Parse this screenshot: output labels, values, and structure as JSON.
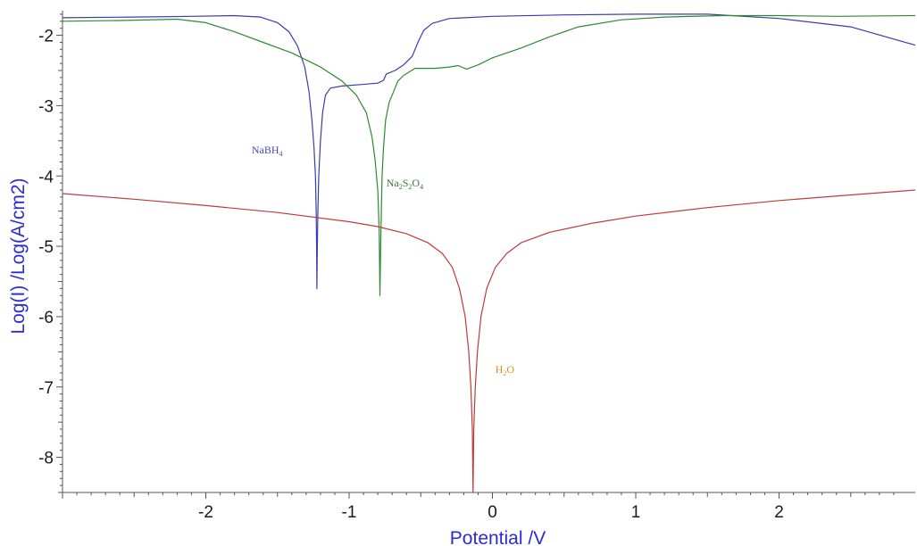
{
  "chart_data": {
    "type": "line",
    "title": "",
    "xlabel": "Potential /V",
    "ylabel": "Log(I) /Log(A/cm2)",
    "xlim": [
      -3.0,
      2.95
    ],
    "ylim": [
      -8.5,
      -1.65
    ],
    "x_ticks": [
      -2,
      -1,
      0,
      1,
      2
    ],
    "x_tick_labels": [
      "-2",
      "-1",
      "0",
      "1",
      "2"
    ],
    "y_ticks": [
      -2,
      -3,
      -4,
      -5,
      -6,
      -7,
      -8
    ],
    "y_tick_labels": [
      "-2",
      "-3",
      "-4",
      "-5",
      "-6",
      "-7",
      "-8"
    ],
    "grid": false,
    "legend": "none",
    "series": [
      {
        "name": "NaBH4",
        "label_parts": [
          [
            "NaBH",
            "main"
          ],
          [
            "4",
            "sub"
          ]
        ],
        "color": "#3b3bb0",
        "label_color": "#4a4aa8",
        "label_at": [
          -1.68,
          -3.68
        ],
        "points": [
          [
            -3.0,
            -1.75
          ],
          [
            -2.5,
            -1.74
          ],
          [
            -2.1,
            -1.73
          ],
          [
            -1.8,
            -1.72
          ],
          [
            -1.62,
            -1.74
          ],
          [
            -1.5,
            -1.82
          ],
          [
            -1.42,
            -1.95
          ],
          [
            -1.36,
            -2.15
          ],
          [
            -1.31,
            -2.45
          ],
          [
            -1.28,
            -2.8
          ],
          [
            -1.26,
            -3.2
          ],
          [
            -1.245,
            -3.6
          ],
          [
            -1.235,
            -4.0
          ],
          [
            -1.23,
            -4.5
          ],
          [
            -1.227,
            -5.0
          ],
          [
            -1.225,
            -5.6
          ],
          [
            -1.222,
            -5.0
          ],
          [
            -1.218,
            -4.5
          ],
          [
            -1.212,
            -4.0
          ],
          [
            -1.2,
            -3.5
          ],
          [
            -1.185,
            -3.1
          ],
          [
            -1.165,
            -2.85
          ],
          [
            -1.13,
            -2.75
          ],
          [
            -1.05,
            -2.72
          ],
          [
            -0.92,
            -2.7
          ],
          [
            -0.8,
            -2.68
          ],
          [
            -0.76,
            -2.64
          ],
          [
            -0.74,
            -2.55
          ],
          [
            -0.68,
            -2.5
          ],
          [
            -0.62,
            -2.42
          ],
          [
            -0.56,
            -2.3
          ],
          [
            -0.52,
            -2.1
          ],
          [
            -0.48,
            -1.93
          ],
          [
            -0.42,
            -1.83
          ],
          [
            -0.3,
            -1.76
          ],
          [
            0.0,
            -1.73
          ],
          [
            0.5,
            -1.71
          ],
          [
            1.0,
            -1.7
          ],
          [
            1.5,
            -1.7
          ],
          [
            2.0,
            -1.76
          ],
          [
            2.5,
            -1.88
          ],
          [
            2.95,
            -2.14
          ]
        ]
      },
      {
        "name": "Na2S2O4",
        "label_parts": [
          [
            "Na",
            "main"
          ],
          [
            "2",
            "sub"
          ],
          [
            "S",
            "main"
          ],
          [
            "2",
            "sub"
          ],
          [
            "O",
            "main"
          ],
          [
            "4",
            "sub"
          ]
        ],
        "color": "#2f8a2f",
        "label_color": "#2f7a2f",
        "label_at": [
          -0.74,
          -4.15
        ],
        "points": [
          [
            -3.0,
            -1.8
          ],
          [
            -2.6,
            -1.79
          ],
          [
            -2.2,
            -1.77
          ],
          [
            -2.0,
            -1.82
          ],
          [
            -1.8,
            -1.95
          ],
          [
            -1.6,
            -2.1
          ],
          [
            -1.4,
            -2.25
          ],
          [
            -1.2,
            -2.45
          ],
          [
            -1.05,
            -2.65
          ],
          [
            -0.95,
            -2.85
          ],
          [
            -0.88,
            -3.1
          ],
          [
            -0.84,
            -3.45
          ],
          [
            -0.82,
            -3.75
          ],
          [
            -0.8,
            -4.2
          ],
          [
            -0.79,
            -4.8
          ],
          [
            -0.785,
            -5.7
          ],
          [
            -0.78,
            -5.0
          ],
          [
            -0.775,
            -4.5
          ],
          [
            -0.77,
            -4.0
          ],
          [
            -0.76,
            -3.6
          ],
          [
            -0.745,
            -3.2
          ],
          [
            -0.72,
            -2.95
          ],
          [
            -0.69,
            -2.8
          ],
          [
            -0.66,
            -2.65
          ],
          [
            -0.62,
            -2.57
          ],
          [
            -0.58,
            -2.52
          ],
          [
            -0.54,
            -2.47
          ],
          [
            -0.5,
            -2.47
          ],
          [
            -0.4,
            -2.47
          ],
          [
            -0.3,
            -2.45
          ],
          [
            -0.24,
            -2.43
          ],
          [
            -0.18,
            -2.48
          ],
          [
            -0.1,
            -2.42
          ],
          [
            0.0,
            -2.32
          ],
          [
            0.2,
            -2.18
          ],
          [
            0.4,
            -2.02
          ],
          [
            0.6,
            -1.88
          ],
          [
            0.9,
            -1.78
          ],
          [
            1.2,
            -1.74
          ],
          [
            1.6,
            -1.72
          ],
          [
            2.0,
            -1.72
          ],
          [
            2.4,
            -1.73
          ],
          [
            2.95,
            -1.72
          ]
        ]
      },
      {
        "name": "H2O",
        "label_parts": [
          [
            "H",
            "main"
          ],
          [
            "2",
            "sub"
          ],
          [
            "O",
            "main"
          ]
        ],
        "color": "#c03a3a",
        "label_color": "#d7901e",
        "label_at": [
          0.02,
          -6.8
        ],
        "points": [
          [
            -3.0,
            -4.25
          ],
          [
            -2.5,
            -4.33
          ],
          [
            -2.0,
            -4.42
          ],
          [
            -1.5,
            -4.52
          ],
          [
            -1.0,
            -4.65
          ],
          [
            -0.8,
            -4.72
          ],
          [
            -0.6,
            -4.82
          ],
          [
            -0.45,
            -4.95
          ],
          [
            -0.35,
            -5.1
          ],
          [
            -0.28,
            -5.3
          ],
          [
            -0.23,
            -5.6
          ],
          [
            -0.19,
            -6.0
          ],
          [
            -0.165,
            -6.5
          ],
          [
            -0.15,
            -7.0
          ],
          [
            -0.14,
            -7.6
          ],
          [
            -0.135,
            -8.5
          ],
          [
            -0.13,
            -7.6
          ],
          [
            -0.12,
            -7.0
          ],
          [
            -0.105,
            -6.5
          ],
          [
            -0.08,
            -6.0
          ],
          [
            -0.04,
            -5.6
          ],
          [
            0.02,
            -5.3
          ],
          [
            0.1,
            -5.1
          ],
          [
            0.2,
            -4.95
          ],
          [
            0.4,
            -4.8
          ],
          [
            0.7,
            -4.67
          ],
          [
            1.0,
            -4.57
          ],
          [
            1.5,
            -4.45
          ],
          [
            2.0,
            -4.35
          ],
          [
            2.5,
            -4.27
          ],
          [
            2.95,
            -4.2
          ]
        ]
      }
    ]
  }
}
